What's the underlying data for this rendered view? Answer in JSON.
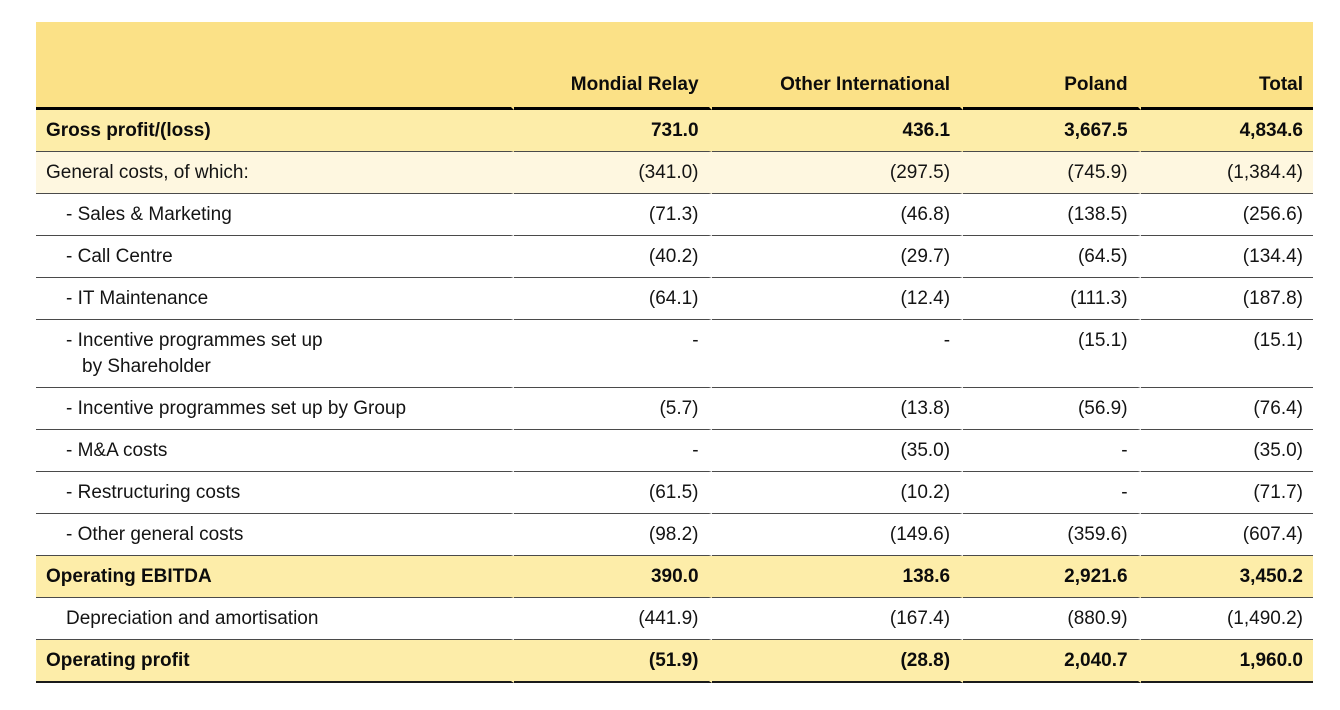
{
  "table": {
    "columns": [
      "",
      "Mondial Relay",
      "Other International",
      "Poland",
      "Total"
    ],
    "rows": [
      {
        "label": "Gross profit/(loss)",
        "values": [
          "731.0",
          "436.1",
          "3,667.5",
          "4,834.6"
        ]
      },
      {
        "label": "General costs, of which:",
        "values": [
          "(341.0)",
          "(297.5)",
          "(745.9)",
          "(1,384.4)"
        ]
      },
      {
        "label": "- Sales & Marketing",
        "values": [
          "(71.3)",
          "(46.8)",
          "(138.5)",
          "(256.6)"
        ]
      },
      {
        "label": "- Call Centre",
        "values": [
          "(40.2)",
          "(29.7)",
          "(64.5)",
          "(134.4)"
        ]
      },
      {
        "label": "- IT Maintenance",
        "values": [
          "(64.1)",
          "(12.4)",
          "(111.3)",
          "(187.8)"
        ]
      },
      {
        "label": "- Incentive programmes set up\nby Shareholder",
        "values": [
          "-",
          "-",
          "(15.1)",
          "(15.1)"
        ]
      },
      {
        "label": "- Incentive programmes set up by Group",
        "values": [
          "(5.7)",
          "(13.8)",
          "(56.9)",
          "(76.4)"
        ]
      },
      {
        "label": "- M&A costs",
        "values": [
          "-",
          "(35.0)",
          "-",
          "(35.0)"
        ]
      },
      {
        "label": "- Restructuring costs",
        "values": [
          "(61.5)",
          "(10.2)",
          "-",
          "(71.7)"
        ]
      },
      {
        "label": "- Other general costs",
        "values": [
          "(98.2)",
          "(149.6)",
          "(359.6)",
          "(607.4)"
        ]
      },
      {
        "label": "Operating EBITDA",
        "values": [
          "390.0",
          "138.6",
          "2,921.6",
          "3,450.2"
        ]
      },
      {
        "label": "Depreciation and amortisation",
        "values": [
          "(441.9)",
          "(167.4)",
          "(880.9)",
          "(1,490.2)"
        ]
      },
      {
        "label": "Operating profit",
        "values": [
          "(51.9)",
          "(28.8)",
          "2,040.7",
          "1,960.0"
        ]
      }
    ]
  },
  "colors": {
    "header_band": "#FBE187",
    "highlight_row": "#FDEDA9",
    "subtotal_row_cream": "#FEF7E0",
    "thick_border": "#000000",
    "thin_border": "#4A4A4A",
    "text": "#141414"
  }
}
